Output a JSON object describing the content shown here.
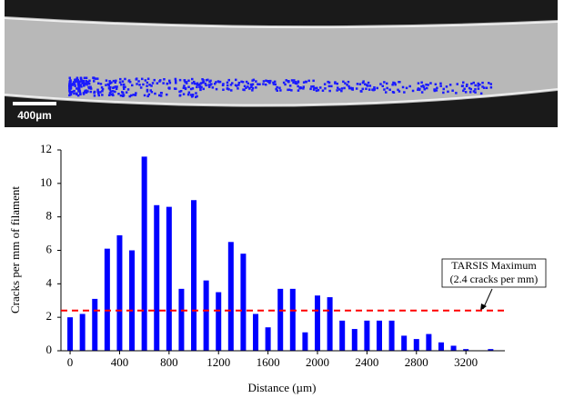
{
  "image": {
    "scale_label": "400µm"
  },
  "chart_data": {
    "type": "bar",
    "x_label": "Distance (µm)",
    "y_label": "Cracks per mm of filament",
    "x": [
      0,
      100,
      200,
      300,
      400,
      500,
      600,
      700,
      800,
      900,
      1000,
      1100,
      1200,
      1300,
      1400,
      1500,
      1600,
      1700,
      1800,
      1900,
      2000,
      2100,
      2200,
      2300,
      2400,
      2500,
      2600,
      2700,
      2800,
      2900,
      3000,
      3100,
      3200,
      3400
    ],
    "values": [
      2.0,
      2.2,
      3.1,
      6.1,
      6.9,
      6.0,
      11.6,
      8.7,
      8.6,
      3.7,
      9.0,
      4.2,
      3.5,
      6.5,
      5.8,
      2.2,
      1.4,
      3.7,
      3.7,
      1.1,
      3.3,
      3.2,
      1.8,
      1.3,
      1.8,
      1.8,
      1.8,
      0.9,
      0.7,
      1.0,
      0.5,
      0.3,
      0.1,
      0.1
    ],
    "color": "#0000ff",
    "xlim": [
      -74,
      3515
    ],
    "xticks": [
      0,
      400,
      800,
      1200,
      1600,
      2000,
      2400,
      2800,
      3200
    ],
    "ylim": [
      0,
      12
    ],
    "yticks": [
      0,
      2,
      4,
      6,
      8,
      10,
      12
    ],
    "reference_line": {
      "value": 2.4,
      "color": "#ff0000",
      "label": [
        "TARSIS Maximum",
        "(2.4 cracks per mm)"
      ]
    }
  }
}
